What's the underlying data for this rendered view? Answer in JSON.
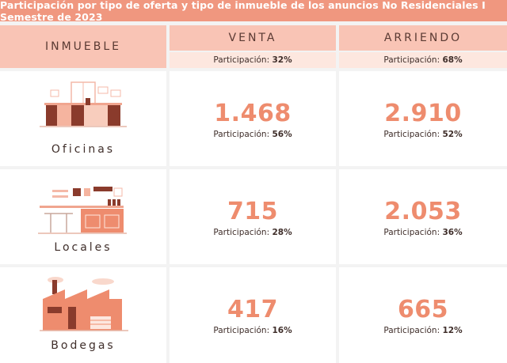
{
  "title": "Participación por tipo de oferta y tipo de inmueble de los anuncios No Residenciales I Semestre de 2023",
  "header": {
    "inmueble": "INMUEBLE",
    "venta": "VENTA",
    "arriendo": "ARRIENDO",
    "part_label": "Participación:",
    "venta_part": "32%",
    "arriendo_part": "68%"
  },
  "rows": [
    {
      "label": "Oficinas",
      "icon": "office-illustration",
      "venta": "1.468",
      "venta_part": "56%",
      "arriendo": "2.910",
      "arriendo_part": "52%"
    },
    {
      "label": "Locales",
      "icon": "store-illustration",
      "venta": "715",
      "venta_part": "28%",
      "arriendo": "2.053",
      "arriendo_part": "36%"
    },
    {
      "label": "Bodegas",
      "icon": "warehouse-illustration",
      "venta": "417",
      "venta_part": "16%",
      "arriendo": "665",
      "arriendo_part": "12%"
    }
  ],
  "colors": {
    "accent": "#f0977f",
    "header": "#f9c4b5",
    "subheader": "#fde7df",
    "number": "#ee8c6e",
    "dark": "#8a3b2c"
  }
}
